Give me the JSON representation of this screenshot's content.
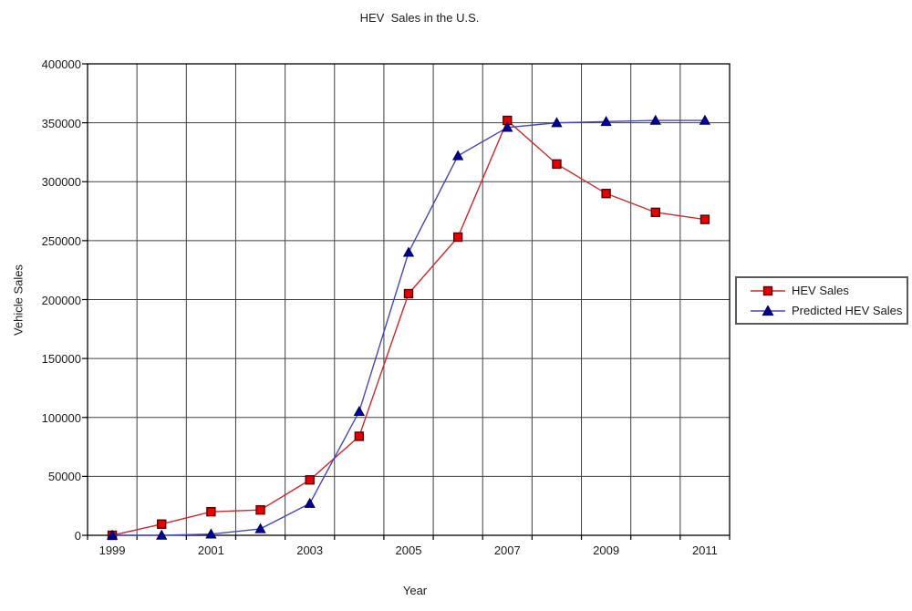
{
  "chart_data": {
    "type": "line",
    "title": "HEV  Sales in the U.S.",
    "xlabel": "Year",
    "ylabel": "Vehicle Sales",
    "categories": [
      1999,
      2000,
      2001,
      2002,
      2003,
      2004,
      2005,
      2006,
      2007,
      2008,
      2009,
      2010,
      2011
    ],
    "x_tick_labels": [
      "1999",
      "2001",
      "2003",
      "2005",
      "2007",
      "2009",
      "2011"
    ],
    "x_tick_label_every": 2,
    "ylim": [
      0,
      400000
    ],
    "y_tick_step": 50000,
    "y_tick_labels": [
      "0",
      "50000",
      "100000",
      "150000",
      "200000",
      "250000",
      "300000",
      "350000",
      "400000"
    ],
    "grid": "both",
    "grid_color": "#404040",
    "border_color": "#000000",
    "legend_position": "right",
    "series": [
      {
        "name": "HEV Sales",
        "marker": "square",
        "line_color": "#cc2a2a",
        "marker_fill": "#e80000",
        "marker_stroke": "#5a0000",
        "values": [
          0,
          9500,
          20000,
          21500,
          47000,
          84000,
          205000,
          253000,
          352000,
          315000,
          290000,
          274000,
          268000
        ]
      },
      {
        "name": "Predicted HEV Sales",
        "marker": "triangle",
        "line_color": "#4747bd",
        "marker_fill": "#0000a0",
        "marker_stroke": "#000050",
        "values": [
          0,
          0,
          1000,
          5500,
          27000,
          105000,
          240000,
          322000,
          346000,
          350000,
          351000,
          352000,
          352000
        ]
      }
    ]
  }
}
